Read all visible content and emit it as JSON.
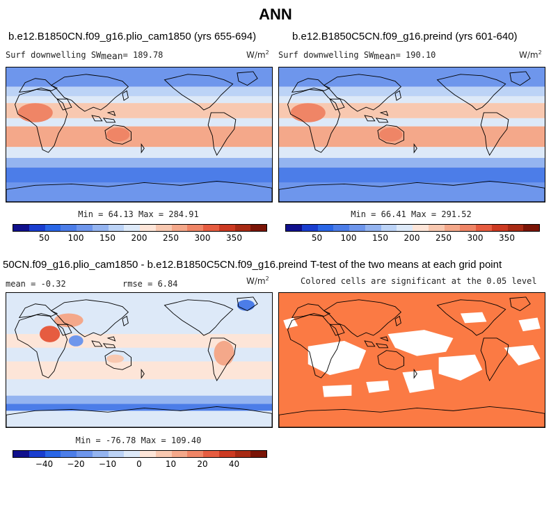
{
  "figure_title": "ANN",
  "colors": {
    "land_outline": "#000000",
    "significance_fill": "#fb7a44",
    "absolute_scale": [
      "#10108c",
      "#1a3ecf",
      "#2a66e6",
      "#4c7de8",
      "#6e96ec",
      "#94b4f0",
      "#bcd3f6",
      "#dde9f8",
      "#fde5d8",
      "#f8c8b0",
      "#f4a88a",
      "#ef8566",
      "#e65c40",
      "#cc3a22",
      "#a82a14",
      "#7a1406"
    ],
    "difference_scale": [
      "#10108c",
      "#1a3ecf",
      "#2a66e6",
      "#4c7de8",
      "#6e96ec",
      "#94b4f0",
      "#bcd3f6",
      "#dde9f8",
      "#fde5d8",
      "#f8c8b0",
      "#f4a88a",
      "#ef8566",
      "#e65c40",
      "#cc3a22",
      "#a82a14",
      "#7a1406"
    ]
  },
  "chart_data": [
    {
      "type": "heatmap",
      "title": "b.e12.B1850CN.f09_g16.plio_cam1850 (yrs 655-694)",
      "variable": "Surf downwelling SW",
      "mean_label": "mean",
      "mean": "189.78",
      "units": "W/m",
      "units_exp": "2",
      "min_label": "Min =",
      "min": "64.13",
      "max_label": "Max =",
      "max": "284.91",
      "colorbar_ticks": [
        "50",
        "100",
        "150",
        "200",
        "250",
        "300",
        "350"
      ]
    },
    {
      "type": "heatmap",
      "title": "b.e12.B1850C5CN.f09_g16.preind (yrs 601-640)",
      "variable": "Surf downwelling SW",
      "mean_label": "mean",
      "mean": "190.10",
      "units": "W/m",
      "units_exp": "2",
      "min_label": "Min =",
      "min": "66.41",
      "max_label": "Max =",
      "max": "291.52",
      "colorbar_ticks": [
        "50",
        "100",
        "150",
        "200",
        "250",
        "300",
        "350"
      ]
    },
    {
      "type": "heatmap",
      "title": "50CN.f09_g16.plio_cam1850 - b.e12.B1850C5CN.f09_g16.preind",
      "mean_text": "mean =  -0.32",
      "rmse_text": "rmse =   6.84",
      "units": "W/m",
      "units_exp": "2",
      "min_label": "Min =",
      "min": "-76.78",
      "max_label": "Max =",
      "max": "109.40",
      "colorbar_ticks": [
        "−40",
        "−20",
        "−10",
        "0",
        "10",
        "20",
        "40"
      ]
    },
    {
      "type": "heatmap",
      "title": "T-test of the two means at each grid point",
      "subtitle": "Colored cells are significant at the 0.05 level"
    }
  ]
}
